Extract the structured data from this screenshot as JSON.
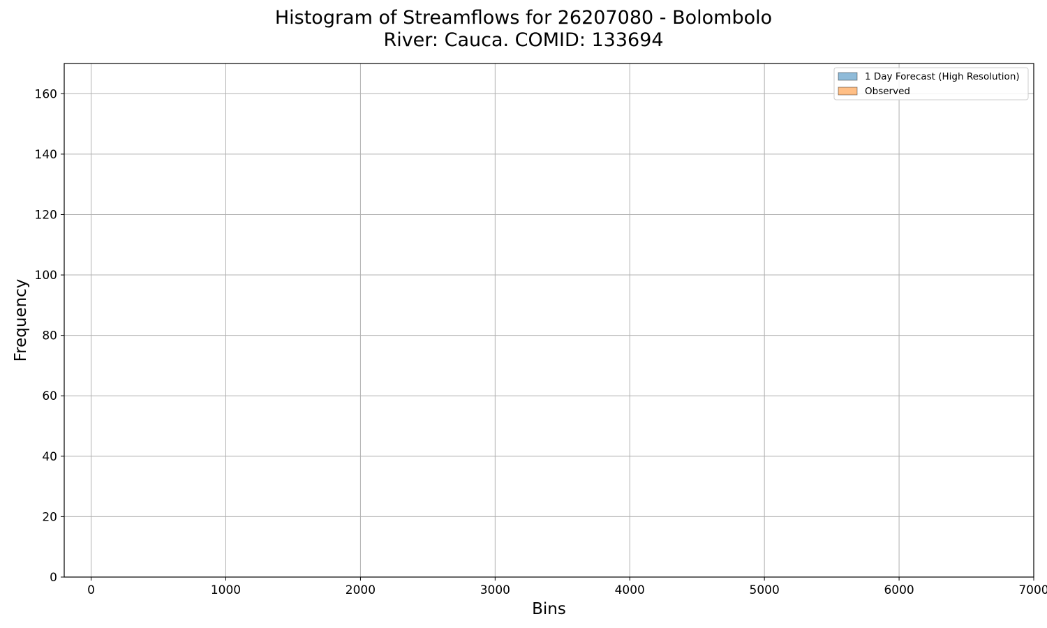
{
  "chart_data": {
    "type": "bar",
    "title_line1": "Histogram of Streamflows for 26207080 - Bolombolo",
    "title_line2": "River: Cauca. COMID: 133694",
    "xlabel": "Bins",
    "ylabel": "Frequency",
    "xlim": [
      -200,
      7000
    ],
    "ylim": [
      0,
      170
    ],
    "xticks": [
      "0",
      "1000",
      "2000",
      "3000",
      "4000",
      "5000",
      "6000",
      "7000"
    ],
    "yticks": [
      "0",
      "20",
      "40",
      "60",
      "80",
      "100",
      "120",
      "140",
      "160"
    ],
    "grid": true,
    "legend_position": "top-right",
    "bin_start": 130,
    "bin_width": 66.9,
    "colors": {
      "forecast": "#1f77b4",
      "observed": "#ff7f0e",
      "edge": "#000000",
      "grid": "#b0b0b0"
    },
    "series": [
      {
        "name": "1 Day Forecast (High Resolution)",
        "key": "forecast",
        "values": [
          0,
          0,
          0,
          0,
          0,
          0,
          0,
          0,
          0,
          0,
          0,
          0,
          0,
          0,
          0,
          0,
          0,
          0,
          0,
          0,
          0,
          0,
          0,
          0,
          0,
          0,
          0,
          0,
          0,
          0,
          0,
          0,
          0,
          0,
          0,
          0,
          0,
          0,
          0,
          0,
          0,
          0,
          0,
          0,
          0,
          0,
          0,
          0,
          0,
          0,
          0,
          0,
          0,
          0,
          0,
          0,
          0,
          0,
          0,
          0,
          0,
          0,
          0,
          0,
          0,
          0,
          0,
          0,
          0,
          0,
          0,
          0,
          0,
          0,
          0,
          0,
          0,
          0,
          0,
          0,
          0,
          0,
          0,
          0,
          0,
          0,
          0,
          0,
          0,
          0,
          0,
          0,
          0,
          0,
          0,
          0,
          0,
          0,
          0,
          0
        ]
      },
      {
        "name": "Observed",
        "key": "observed",
        "values": []
      }
    ]
  }
}
